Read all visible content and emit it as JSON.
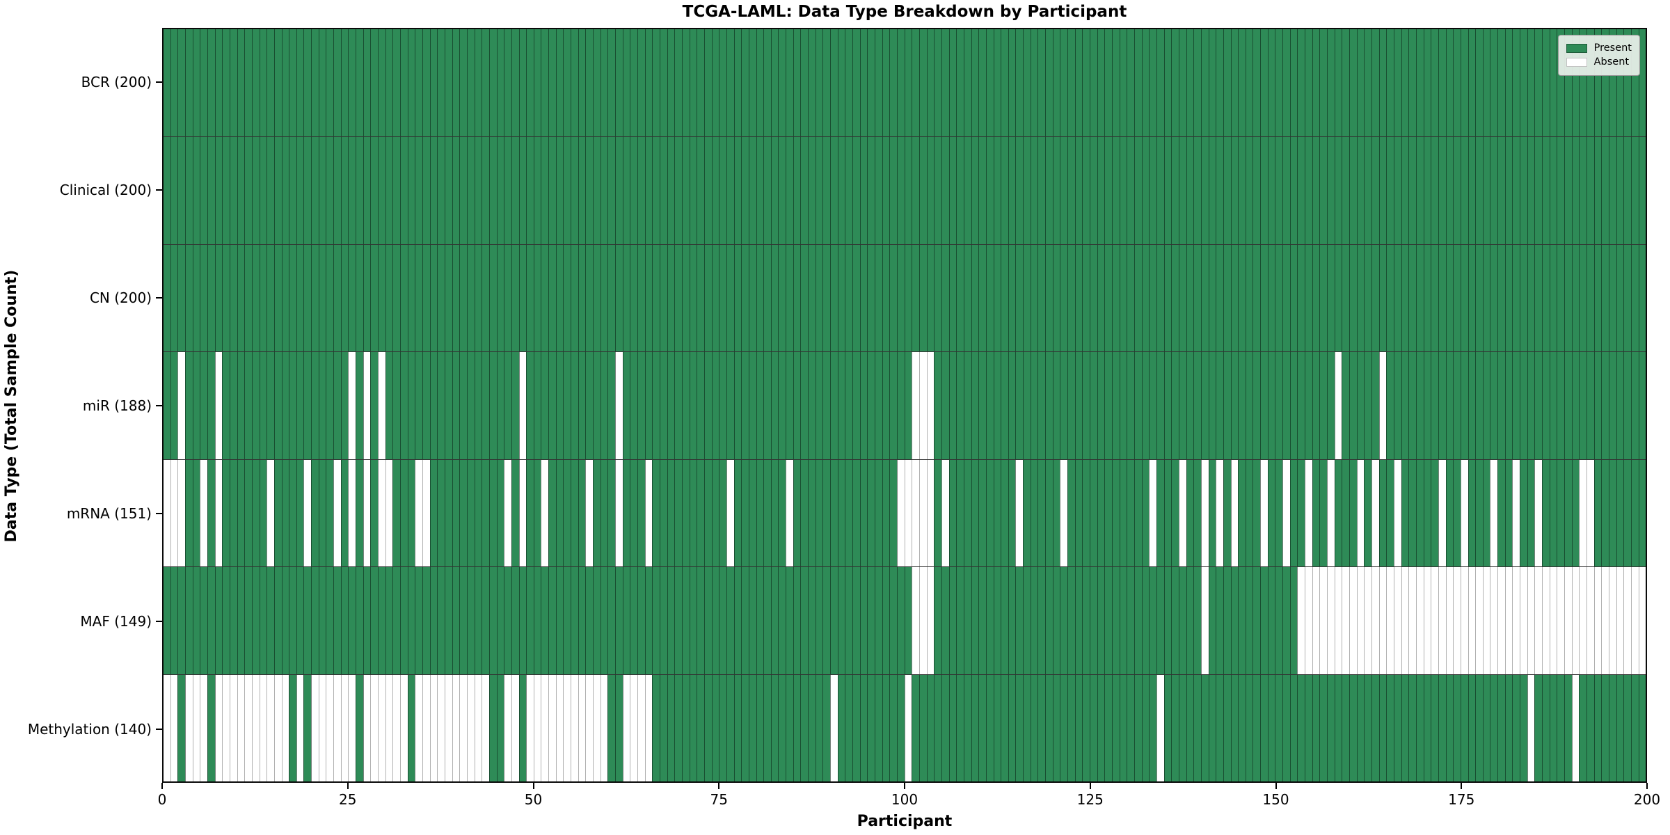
{
  "chart_data": {
    "type": "heatmap",
    "title": "TCGA-LAML: Data Type Breakdown by Participant",
    "xlabel": "Participant",
    "ylabel": "Data Type (Total Sample Count)",
    "n_participants": 200,
    "x_range": [
      0,
      200
    ],
    "x_ticks": [
      0,
      25,
      50,
      75,
      100,
      125,
      150,
      175,
      200
    ],
    "grid": "cell-edges",
    "legend_position": "upper right",
    "present_color": "#2e8b57",
    "absent_color": "#ffffff",
    "present_edge_color": "rgba(10,30,18,0.55)",
    "absent_edge_color": "#b0b0b0",
    "legend_items": [
      {
        "label": "Present",
        "color": "#2e8b57"
      },
      {
        "label": "Absent",
        "color": "#ffffff"
      }
    ],
    "rows": [
      {
        "label": "BCR (200)",
        "data_type": "BCR",
        "present_count": 200,
        "absent_participants": []
      },
      {
        "label": "Clinical (200)",
        "data_type": "Clinical",
        "present_count": 200,
        "absent_participants": []
      },
      {
        "label": "CN (200)",
        "data_type": "CN",
        "present_count": 200,
        "absent_participants": []
      },
      {
        "label": "miR (188)",
        "data_type": "miR",
        "present_count": 188,
        "absent_participants": [
          2,
          7,
          25,
          27,
          29,
          48,
          61,
          101,
          102,
          103,
          158,
          164
        ]
      },
      {
        "label": "mRNA (151)",
        "data_type": "mRNA",
        "present_count": 151,
        "absent_participants": [
          0,
          1,
          2,
          5,
          7,
          14,
          19,
          23,
          25,
          27,
          29,
          30,
          34,
          35,
          46,
          48,
          51,
          57,
          61,
          65,
          76,
          84,
          99,
          100,
          101,
          102,
          103,
          105,
          115,
          121,
          133,
          137,
          140,
          142,
          144,
          148,
          151,
          154,
          157,
          161,
          163,
          166,
          172,
          175,
          179,
          182,
          185,
          191,
          192
        ]
      },
      {
        "label": "MAF (149)",
        "data_type": "MAF",
        "present_count": 149,
        "absent_participants": [
          101,
          102,
          103,
          140,
          153,
          154,
          155,
          156,
          157,
          158,
          159,
          160,
          161,
          162,
          163,
          164,
          165,
          166,
          167,
          168,
          169,
          170,
          171,
          172,
          173,
          174,
          175,
          176,
          177,
          178,
          179,
          180,
          181,
          182,
          183,
          184,
          185,
          186,
          187,
          188,
          189,
          190,
          191,
          192,
          193,
          194,
          195,
          196,
          197,
          198,
          199
        ]
      },
      {
        "label": "Methylation (140)",
        "data_type": "Methylation",
        "present_count": 140,
        "absent_participants": [
          0,
          1,
          3,
          4,
          5,
          7,
          8,
          9,
          10,
          11,
          12,
          13,
          14,
          15,
          16,
          18,
          20,
          21,
          22,
          23,
          24,
          25,
          27,
          28,
          29,
          30,
          31,
          32,
          34,
          35,
          36,
          37,
          38,
          39,
          40,
          41,
          42,
          43,
          46,
          47,
          49,
          50,
          51,
          52,
          53,
          54,
          55,
          56,
          57,
          58,
          59,
          62,
          63,
          64,
          65,
          90,
          100,
          134,
          184,
          190
        ]
      }
    ]
  }
}
